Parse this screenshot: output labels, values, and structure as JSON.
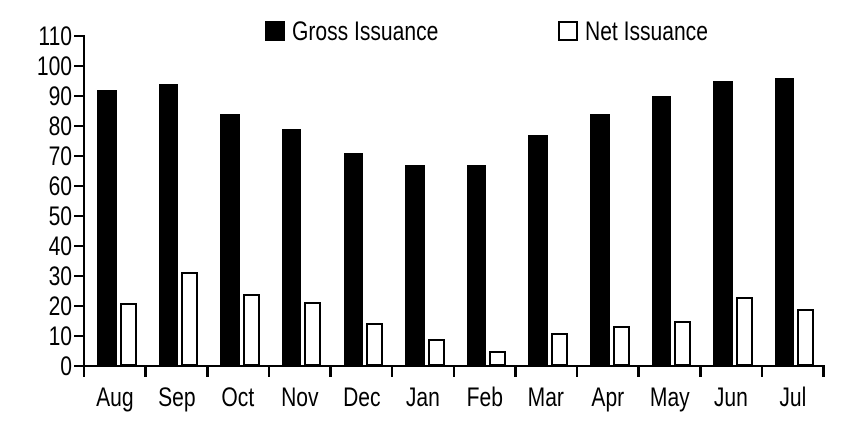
{
  "chart_data": {
    "type": "bar",
    "title": "",
    "xlabel": "",
    "ylabel": "",
    "categories": [
      "Aug",
      "Sep",
      "Oct",
      "Nov",
      "Dec",
      "Jan",
      "Feb",
      "Mar",
      "Apr",
      "May",
      "Jun",
      "Jul"
    ],
    "series": [
      {
        "name": "Gross Issuance",
        "swatch": "solid-black",
        "values": [
          92,
          94,
          84,
          79,
          71,
          67,
          67,
          77,
          84,
          90,
          95,
          96
        ]
      },
      {
        "name": "Net Issuance",
        "swatch": "hollow-white",
        "values": [
          21,
          31.5,
          24,
          21.5,
          14.5,
          9,
          5,
          11,
          13.5,
          15,
          23,
          19
        ]
      }
    ],
    "ylim": [
      0,
      110
    ],
    "yticks": [
      0,
      10,
      20,
      30,
      40,
      50,
      60,
      70,
      80,
      90,
      100,
      110
    ],
    "grid": false,
    "legend_position": "top-center",
    "colors": {
      "gross_fill": "#000000",
      "net_fill": "#ffffff",
      "net_border": "#000000",
      "axis": "#000000",
      "text": "#000000",
      "background": "#ffffff"
    }
  }
}
